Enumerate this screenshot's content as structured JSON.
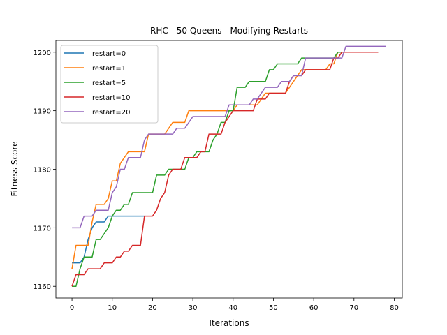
{
  "chart_data": {
    "type": "line",
    "title": "RHC - 50 Queens - Modifying Restarts",
    "xlabel": "Iterations",
    "ylabel": "Fitness Score",
    "xlim": [
      -4,
      82
    ],
    "ylim": [
      1158,
      1202
    ],
    "xticks": [
      0,
      10,
      20,
      30,
      40,
      50,
      60,
      70,
      80
    ],
    "yticks": [
      1160,
      1170,
      1180,
      1190,
      1200
    ],
    "grid": false,
    "legend": "upper left",
    "series": [
      {
        "name": "restart=0",
        "color": "#1f77b4",
        "values": [
          1164,
          1164,
          1164,
          1165,
          1168,
          1170,
          1171,
          1171,
          1171,
          1172,
          1172,
          1172,
          1172,
          1172,
          1172,
          1172,
          1172,
          1172,
          1172
        ]
      },
      {
        "name": "restart=1",
        "color": "#ff7f0e",
        "values": [
          1163,
          1167,
          1167,
          1167,
          1167,
          1171,
          1174,
          1174,
          1174,
          1175,
          1178,
          1178,
          1181,
          1182,
          1183,
          1183,
          1183,
          1183,
          1183,
          1186,
          1186,
          1186,
          1186,
          1186,
          1187,
          1188,
          1188,
          1188,
          1188,
          1190,
          1190,
          1190,
          1190,
          1190,
          1190,
          1190,
          1190,
          1190,
          1190,
          1190,
          1190,
          1191,
          1191,
          1191,
          1191,
          1191,
          1191,
          1192,
          1193,
          1193,
          1193,
          1193,
          1193,
          1193,
          1194,
          1195,
          1196,
          1197,
          1197,
          1197,
          1197,
          1197,
          1197,
          1197,
          1198,
          1198,
          1200,
          1200,
          1200,
          1200,
          1200,
          1200,
          1200,
          1200,
          1200,
          1200,
          1200
        ]
      },
      {
        "name": "restart=5",
        "color": "#2ca02c",
        "values": [
          1160,
          1160,
          1163,
          1165,
          1165,
          1165,
          1168,
          1168,
          1169,
          1170,
          1172,
          1173,
          1173,
          1174,
          1174,
          1176,
          1176,
          1176,
          1176,
          1176,
          1176,
          1179,
          1179,
          1179,
          1180,
          1180,
          1180,
          1180,
          1180,
          1182,
          1182,
          1183,
          1183,
          1183,
          1183,
          1185,
          1186,
          1188,
          1188,
          1190,
          1190,
          1194,
          1194,
          1194,
          1195,
          1195,
          1195,
          1195,
          1195,
          1197,
          1197,
          1198,
          1198,
          1198,
          1198,
          1198,
          1198,
          1199,
          1199,
          1199,
          1199,
          1199,
          1199,
          1199,
          1199,
          1199,
          1200,
          1200,
          1200,
          1200,
          1200,
          1200,
          1200,
          1200,
          1200,
          1200,
          1200
        ]
      },
      {
        "name": "restart=10",
        "color": "#d62728",
        "values": [
          1160,
          1162,
          1162,
          1162,
          1163,
          1163,
          1163,
          1163,
          1164,
          1164,
          1164,
          1165,
          1165,
          1166,
          1166,
          1167,
          1167,
          1167,
          1172,
          1172,
          1172,
          1173,
          1175,
          1176,
          1179,
          1180,
          1180,
          1180,
          1182,
          1182,
          1182,
          1182,
          1183,
          1183,
          1186,
          1186,
          1186,
          1186,
          1188,
          1189,
          1190,
          1190,
          1190,
          1190,
          1190,
          1190,
          1192,
          1192,
          1192,
          1193,
          1193,
          1193,
          1193,
          1193,
          1195,
          1196,
          1196,
          1196,
          1197,
          1197,
          1197,
          1197,
          1197,
          1197,
          1197,
          1199,
          1199,
          1200,
          1200,
          1200,
          1200,
          1200,
          1200,
          1200,
          1200,
          1200,
          1200
        ]
      },
      {
        "name": "restart=20",
        "color": "#9467bd",
        "values": [
          1170,
          1170,
          1170,
          1172,
          1172,
          1172,
          1173,
          1173,
          1173,
          1173,
          1176,
          1177,
          1180,
          1180,
          1182,
          1182,
          1182,
          1182,
          1185,
          1186,
          1186,
          1186,
          1186,
          1186,
          1186,
          1186,
          1187,
          1187,
          1187,
          1188,
          1189,
          1189,
          1189,
          1189,
          1189,
          1189,
          1189,
          1189,
          1189,
          1191,
          1191,
          1191,
          1191,
          1191,
          1191,
          1192,
          1192,
          1193,
          1194,
          1194,
          1194,
          1194,
          1195,
          1195,
          1195,
          1196,
          1196,
          1196,
          1199,
          1199,
          1199,
          1199,
          1199,
          1199,
          1199,
          1199,
          1199,
          1199,
          1201,
          1201,
          1201,
          1201,
          1201,
          1201,
          1201,
          1201,
          1201,
          1201,
          1201
        ]
      }
    ]
  }
}
